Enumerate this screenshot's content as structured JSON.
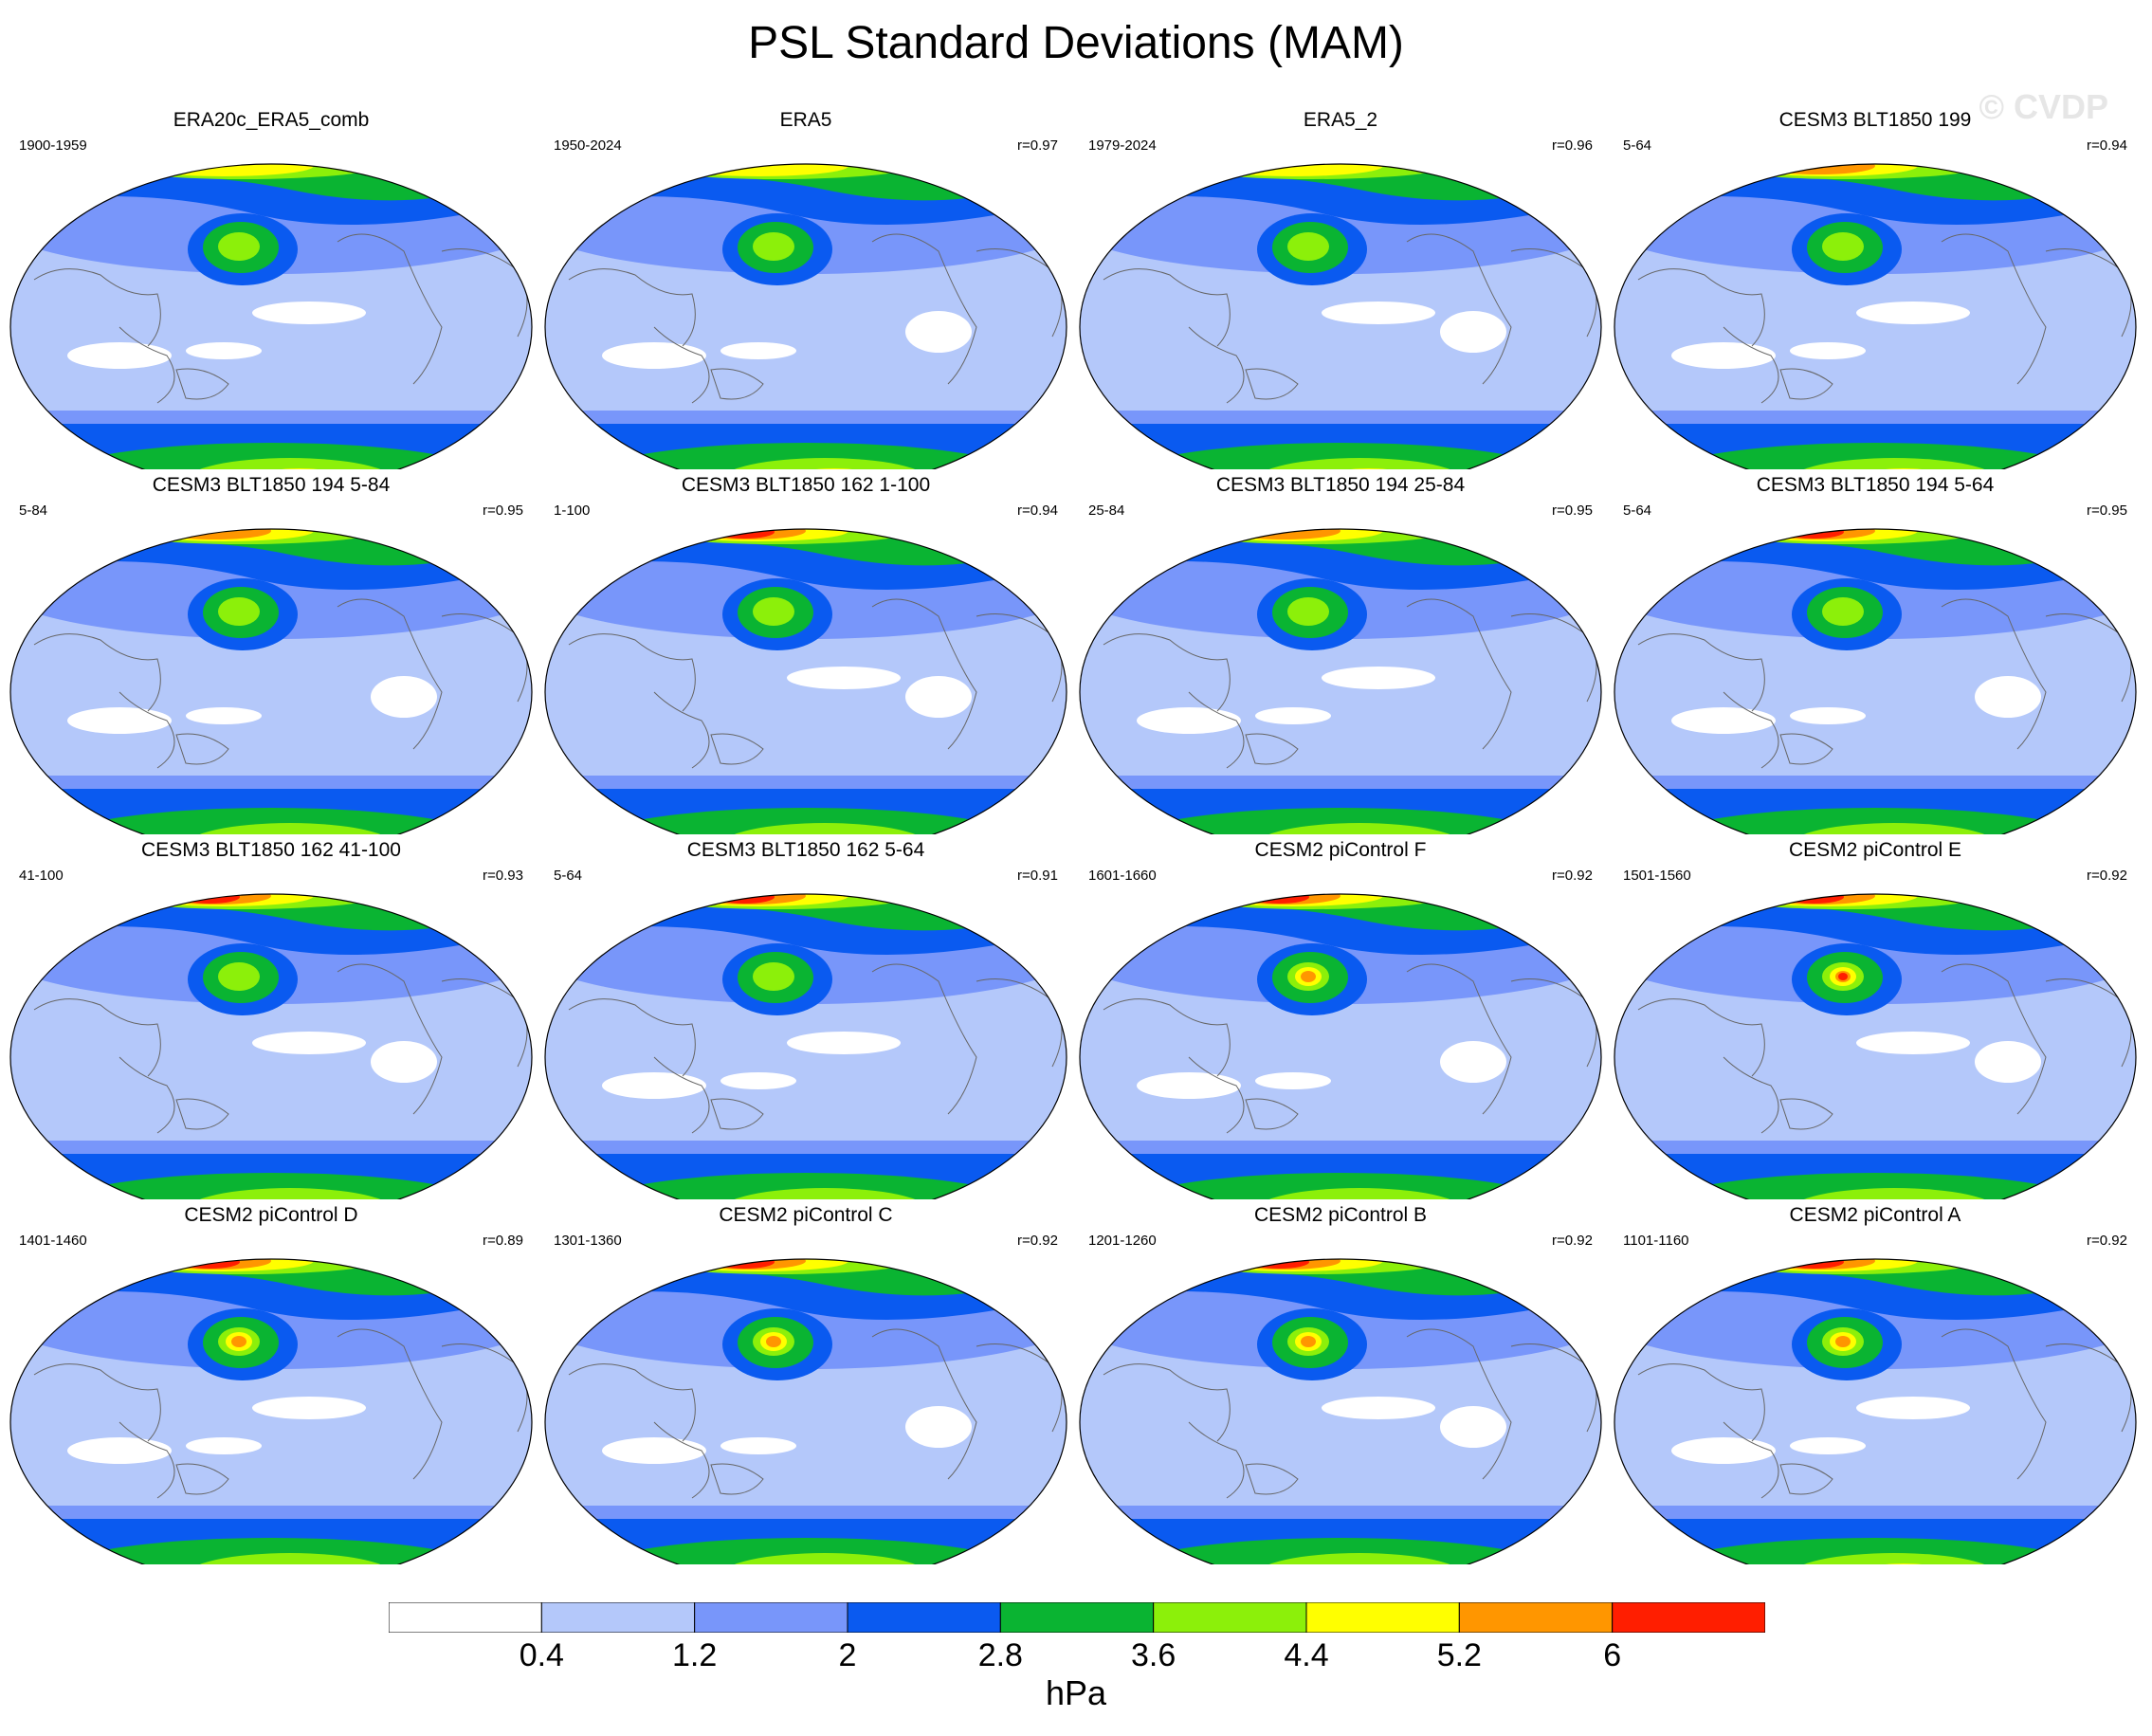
{
  "title": "PSL Standard Deviations (MAM)",
  "watermark": "© CVDP",
  "colors": {
    "levels": [
      "#ffffff",
      "#b4c8fa",
      "#7896fa",
      "#0a5af0",
      "#0ab432",
      "#8cf00a",
      "#ffff00",
      "#ff9600",
      "#ff1e00"
    ],
    "coast": "#666666",
    "outline": "#000000"
  },
  "panels": [
    {
      "title": "ERA20c_ERA5_comb",
      "years": "1900-1959",
      "r": ""
    },
    {
      "title": "ERA5",
      "years": "1950-2024",
      "r": "r=0.97"
    },
    {
      "title": "ERA5_2",
      "years": "1979-2024",
      "r": "r=0.96"
    },
    {
      "title": "CESM3 BLT1850 199",
      "years": "5-64",
      "r": "r=0.94"
    },
    {
      "title": "CESM3 BLT1850 194 5-84",
      "years": "5-84",
      "r": "r=0.95"
    },
    {
      "title": "CESM3 BLT1850 162 1-100",
      "years": "1-100",
      "r": "r=0.94"
    },
    {
      "title": "CESM3 BLT1850 194 25-84",
      "years": "25-84",
      "r": "r=0.95"
    },
    {
      "title": "CESM3 BLT1850 194 5-64",
      "years": "5-64",
      "r": "r=0.95"
    },
    {
      "title": "CESM3 BLT1850 162 41-100",
      "years": "41-100",
      "r": "r=0.93"
    },
    {
      "title": "CESM3 BLT1850 162 5-64",
      "years": "5-64",
      "r": "r=0.91"
    },
    {
      "title": "CESM2 piControl F",
      "years": "1601-1660",
      "r": "r=0.92"
    },
    {
      "title": "CESM2 piControl E",
      "years": "1501-1560",
      "r": "r=0.92"
    },
    {
      "title": "CESM2 piControl D",
      "years": "1401-1460",
      "r": "r=0.89"
    },
    {
      "title": "CESM2 piControl C",
      "years": "1301-1360",
      "r": "r=0.92"
    },
    {
      "title": "CESM2 piControl B",
      "years": "1201-1260",
      "r": "r=0.92"
    },
    {
      "title": "CESM2 piControl A",
      "years": "1101-1160",
      "r": "r=0.92"
    }
  ],
  "colorbar": {
    "labels": [
      "0.4",
      "1.2",
      "2",
      "2.8",
      "3.6",
      "4.4",
      "5.2",
      "6"
    ],
    "units": "hPa"
  }
}
